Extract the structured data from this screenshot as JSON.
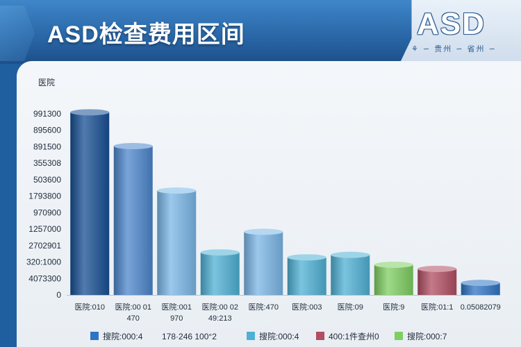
{
  "header": {
    "title": "ASD检查费用区间",
    "logo_text": "ASD",
    "logo_subtitle": "⚘ ∽ 贵州 ∽ 省州 ∽"
  },
  "colors": {
    "dark_blue": "#174f93",
    "mid_blue": "#4c86cc",
    "light_blue": "#7ab6e6",
    "teal": "#4fb0d4",
    "green": "#7fce62",
    "red": "#b04e63",
    "blue": "#2f74c4"
  },
  "chart_data": {
    "type": "bar",
    "title": "ASD检查费用区间",
    "ylabel": "医院",
    "xlabel": "",
    "ylim": [
      0,
      12
    ],
    "y_ticks": [
      "0",
      "4073300",
      "320:1000",
      "2702901",
      "1257000",
      "970900",
      "1793800",
      "503600",
      "355308",
      "891500",
      "895600",
      "991300"
    ],
    "categories": [
      [
        "医院:010"
      ],
      [
        "医院:00 01",
        "470"
      ],
      [
        "医院:001",
        "970"
      ],
      [
        "医院:00 02",
        "49:213"
      ],
      [
        "医院:470"
      ],
      [
        "医院:003"
      ],
      [
        "医院:09"
      ],
      [
        "医院:9"
      ],
      [
        "医院:01:1"
      ],
      [
        "0.05082079"
      ]
    ],
    "values": [
      11.25,
      9.2,
      6.5,
      2.75,
      4.0,
      2.45,
      2.6,
      2.0,
      1.75,
      0.9
    ],
    "bar_colors": [
      "dark_blue",
      "mid_blue",
      "light_blue",
      "teal",
      "light_blue",
      "teal",
      "teal",
      "green",
      "red",
      "blue"
    ],
    "legend": [
      {
        "label": "搜院:000:4",
        "color": "blue"
      },
      {
        "label": "178·246 100°2",
        "color": ""
      },
      {
        "label": "搜院:000:4",
        "color": "teal"
      },
      {
        "label": "400:1件查州0",
        "color": "red"
      },
      {
        "label": "搜院:000:7",
        "color": "green"
      }
    ],
    "grid": false,
    "legend_position": "bottom"
  }
}
